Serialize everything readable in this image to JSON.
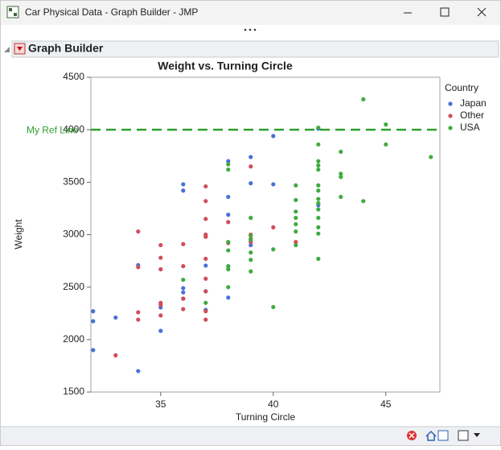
{
  "window": {
    "title": "Car Physical Data - Graph Builder - JMP"
  },
  "outline": {
    "title": "Graph Builder"
  },
  "chart_data": {
    "type": "scatter",
    "title": "Weight vs. Turning Circle",
    "x_label": "Turning Circle",
    "y_label": "Weight",
    "legend_title": "Country",
    "legend_position": "right",
    "grid": false,
    "xlim": [
      31.9,
      47.4
    ],
    "xticks": [
      35,
      40,
      45
    ],
    "ylim": [
      1500,
      4500
    ],
    "yticks": [
      1500,
      2000,
      2500,
      3000,
      3500,
      4000,
      4500
    ],
    "reference_lines": [
      {
        "value": 4000,
        "label": "My Ref Line",
        "color": "#2e9e2e"
      }
    ],
    "series": [
      {
        "name": "Japan",
        "color": "#4a6fd8",
        "x": [
          32,
          32,
          32,
          33,
          34,
          34,
          35,
          35,
          36,
          36,
          36,
          36,
          36,
          37,
          37,
          37,
          38,
          38,
          38,
          38,
          39,
          39,
          39,
          40,
          40,
          42,
          42
        ],
        "values": [
          2270,
          2175,
          1900,
          2210,
          2710,
          1700,
          2306,
          2083,
          3480,
          3420,
          2490,
          2450,
          2390,
          2705,
          2460,
          2283,
          3700,
          3360,
          3190,
          2400,
          3740,
          3490,
          2900,
          3940,
          3480,
          4010,
          3280
        ]
      },
      {
        "name": "Other",
        "color": "#d24b5a",
        "x": [
          33,
          34,
          34,
          34,
          34,
          35,
          35,
          35,
          35,
          35,
          35,
          36,
          36,
          36,
          36,
          37,
          37,
          37,
          37,
          37,
          37,
          37,
          37,
          37,
          37,
          38,
          38,
          39,
          39,
          39,
          39,
          40,
          41
        ],
        "values": [
          1850,
          3030,
          2690,
          2260,
          2190,
          2900,
          2780,
          2670,
          2350,
          2330,
          2230,
          2910,
          2700,
          2390,
          2290,
          3460,
          3320,
          3150,
          3000,
          2980,
          2770,
          2580,
          2460,
          2270,
          2190,
          3120,
          2920,
          3650,
          3000,
          2960,
          2930,
          3070,
          2930
        ]
      },
      {
        "name": "USA",
        "color": "#3fab3f",
        "x": [
          36,
          37,
          38,
          38,
          38,
          38,
          38,
          38,
          38,
          39,
          39,
          39,
          39,
          39,
          39,
          40,
          40,
          41,
          41,
          41,
          41,
          41,
          41,
          41,
          42,
          42,
          42,
          42,
          42,
          42,
          42,
          42,
          42,
          42,
          42,
          42,
          42,
          42,
          43,
          43,
          43,
          43,
          44,
          44,
          45,
          45,
          47
        ],
        "values": [
          2570,
          2350,
          3670,
          3620,
          2930,
          2850,
          2700,
          2670,
          2500,
          3160,
          2990,
          2950,
          2830,
          2760,
          2650,
          2860,
          2310,
          3470,
          3330,
          3220,
          3160,
          3100,
          3030,
          2900,
          4020,
          3860,
          3700,
          3660,
          3620,
          3470,
          3420,
          3340,
          3300,
          3240,
          3160,
          3070,
          3010,
          2770,
          3790,
          3580,
          3550,
          3360,
          4290,
          3320,
          4050,
          3860,
          3740
        ]
      }
    ]
  }
}
